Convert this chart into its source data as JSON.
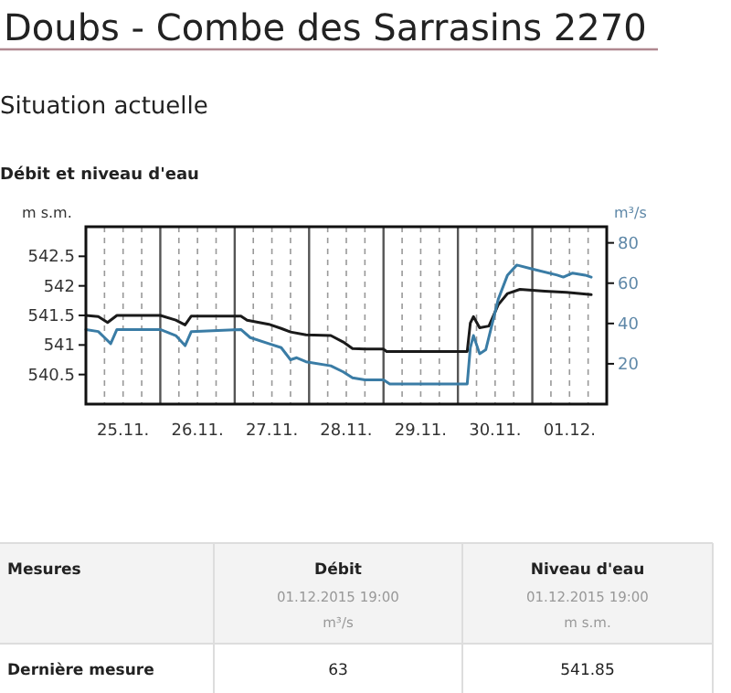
{
  "chart_data": {
    "type": "line",
    "title": "Doubs - Combe des Sarrasins 2270",
    "subtitle": "Situation actuelle",
    "ylabel": "m s.m.",
    "y2label": "m³/s",
    "annotations": [
      "Débit et niveau d'eau",
      "Mesures",
      "Débit",
      "01.12.2015 19:00",
      "m³/s",
      "Niveau d'eau",
      "01.12.2015 19:00",
      "m s.m.",
      "Dernière mesure",
      "63",
      "541.85"
    ],
    "xlim": [
      "2015-11-25T00:00",
      "2015-12-02T00:00"
    ],
    "xticks": [
      {
        "value": "2015-11-25T06:00",
        "label": null
      },
      {
        "value": "2015-11-25T12:00",
        "label": "25.11."
      },
      {
        "value": "2015-11-25T18:00",
        "label": null
      },
      {
        "value": "2015-11-26T00:00",
        "label": null
      },
      {
        "value": "2015-11-26T06:00",
        "label": null
      },
      {
        "value": "2015-11-26T12:00",
        "label": "26.11."
      },
      {
        "value": "2015-11-26T18:00",
        "label": null
      },
      {
        "value": "2015-11-27T00:00",
        "label": null
      },
      {
        "value": "2015-11-27T06:00",
        "label": null
      },
      {
        "value": "2015-11-27T12:00",
        "label": "27.11."
      },
      {
        "value": "2015-11-27T18:00",
        "label": null
      },
      {
        "value": "2015-11-28T00:00",
        "label": null
      },
      {
        "value": "2015-11-28T06:00",
        "label": null
      },
      {
        "value": "2015-11-28T12:00",
        "label": "28.11."
      },
      {
        "value": "2015-11-28T18:00",
        "label": null
      },
      {
        "value": "2015-11-29T00:00",
        "label": null
      },
      {
        "value": "2015-11-29T06:00",
        "label": null
      },
      {
        "value": "2015-11-29T12:00",
        "label": "29.11."
      },
      {
        "value": "2015-11-29T18:00",
        "label": null
      },
      {
        "value": "2015-11-30T00:00",
        "label": null
      },
      {
        "value": "2015-11-30T06:00",
        "label": null
      },
      {
        "value": "2015-11-30T12:00",
        "label": "30.11."
      },
      {
        "value": "2015-11-30T18:00",
        "label": null
      },
      {
        "value": "2015-12-01T00:00",
        "label": null
      },
      {
        "value": "2015-12-01T06:00",
        "label": null
      },
      {
        "value": "2015-12-01T12:00",
        "label": "01.12."
      },
      {
        "value": "2015-12-01T18:00",
        "label": null
      }
    ],
    "ylim": [
      540,
      543
    ],
    "yticks": [
      540.5,
      541,
      541.5,
      542,
      542.5
    ],
    "y2lim": [
      0,
      88
    ],
    "y2ticks": [
      20,
      40,
      60,
      80
    ],
    "grid": "x",
    "line_style": "solid",
    "marker": "none",
    "series": [
      {
        "color": "#1a1a1a",
        "axis": "y",
        "x": [
          "2015-11-25T00:00",
          "2015-11-25T04:00",
          "2015-11-25T07:00",
          "2015-11-25T10:00",
          "2015-11-26T00:00",
          "2015-11-26T05:00",
          "2015-11-26T08:00",
          "2015-11-26T10:00",
          "2015-11-27T02:00",
          "2015-11-27T04:00",
          "2015-11-27T11:00",
          "2015-11-27T15:00",
          "2015-11-27T18:00",
          "2015-11-27T23:00",
          "2015-11-28T07:00",
          "2015-11-28T11:00",
          "2015-11-28T14:00",
          "2015-11-28T18:00",
          "2015-11-29T00:00",
          "2015-11-29T01:00",
          "2015-11-30T03:00",
          "2015-11-30T04:00",
          "2015-11-30T05:00",
          "2015-11-30T07:00",
          "2015-11-30T10:00",
          "2015-11-30T13:00",
          "2015-11-30T16:00",
          "2015-11-30T20:00",
          "2015-12-01T04:00",
          "2015-12-01T11:00",
          "2015-12-01T19:00"
        ],
        "values": [
          541.5,
          541.48,
          541.38,
          541.5,
          541.5,
          541.42,
          541.34,
          541.49,
          541.49,
          541.42,
          541.35,
          541.28,
          541.22,
          541.17,
          541.16,
          541.05,
          540.94,
          540.93,
          540.93,
          540.89,
          540.89,
          541.37,
          541.48,
          541.29,
          541.32,
          541.68,
          541.87,
          541.94,
          541.91,
          541.89,
          541.85
        ]
      },
      {
        "color": "#3a7ca5",
        "axis": "y2",
        "x": [
          "2015-11-25T00:00",
          "2015-11-25T04:00",
          "2015-11-25T06:00",
          "2015-11-25T08:00",
          "2015-11-25T10:00",
          "2015-11-26T00:00",
          "2015-11-26T05:00",
          "2015-11-26T08:00",
          "2015-11-26T10:00",
          "2015-11-27T02:00",
          "2015-11-27T05:00",
          "2015-11-27T11:00",
          "2015-11-27T15:00",
          "2015-11-27T18:00",
          "2015-11-27T20:00",
          "2015-11-27T23:00",
          "2015-11-28T07:00",
          "2015-11-28T11:00",
          "2015-11-28T14:00",
          "2015-11-28T18:00",
          "2015-11-29T00:00",
          "2015-11-29T02:00",
          "2015-11-30T03:00",
          "2015-11-30T04:00",
          "2015-11-30T05:00",
          "2015-11-30T07:00",
          "2015-11-30T09:00",
          "2015-11-30T13:00",
          "2015-11-30T16:00",
          "2015-11-30T19:00",
          "2015-12-01T00:00",
          "2015-12-01T08:00",
          "2015-12-01T10:00",
          "2015-12-01T13:00",
          "2015-12-01T17:00",
          "2015-12-01T19:00"
        ],
        "values": [
          37,
          36,
          33,
          30,
          37,
          37,
          34,
          29,
          36,
          37,
          33,
          30,
          28,
          22,
          23,
          21,
          19,
          16,
          13,
          12,
          12,
          10,
          10,
          28,
          34,
          25,
          27,
          52,
          64,
          69,
          67,
          64,
          63,
          65,
          64,
          63
        ]
      }
    ]
  }
}
